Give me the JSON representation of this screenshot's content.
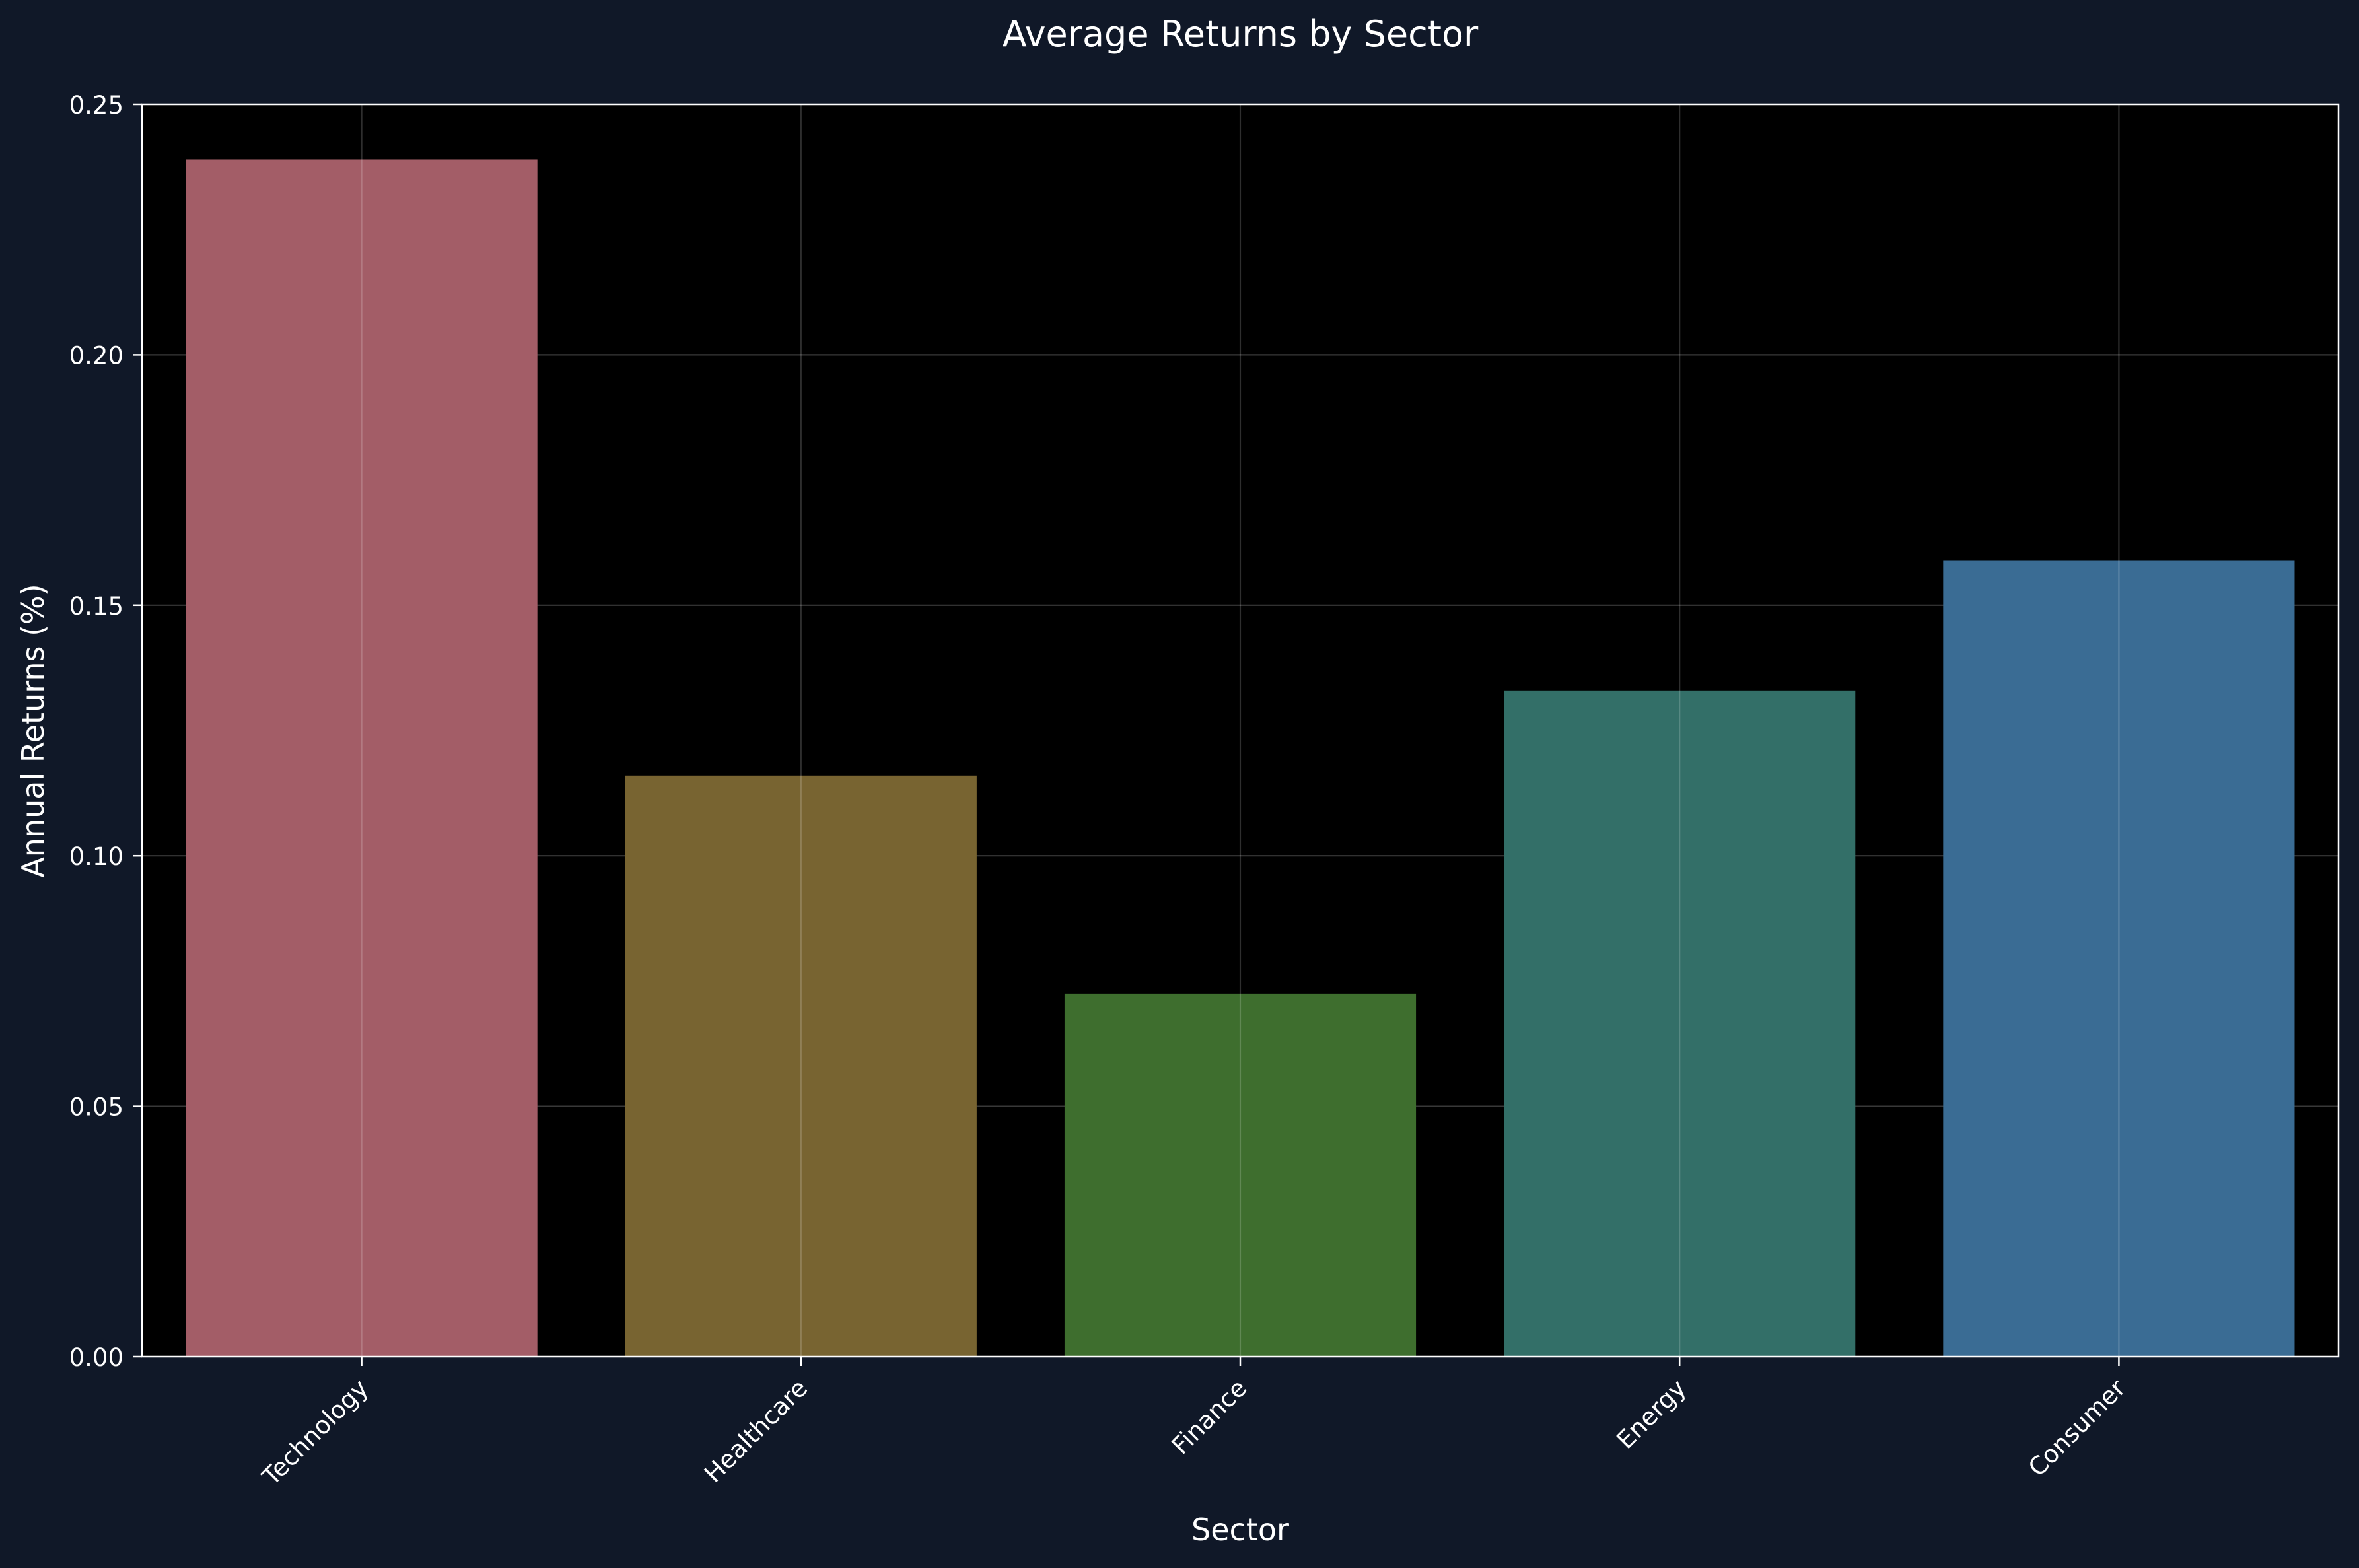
{
  "chart_data": {
    "type": "bar",
    "title": "Average Returns by Sector",
    "xlabel": "Sector",
    "ylabel": "Annual Returns (%)",
    "categories": [
      "Technology",
      "Healthcare",
      "Finance",
      "Energy",
      "Consumer"
    ],
    "values": [
      0.239,
      0.116,
      0.0725,
      0.133,
      0.159
    ],
    "ylim": [
      0,
      0.25
    ],
    "yticks": [
      0.0,
      0.05,
      0.1,
      0.15,
      0.2,
      0.25
    ],
    "ytick_labels": [
      "0.00",
      "0.05",
      "0.10",
      "0.15",
      "0.20",
      "0.25"
    ],
    "colors": [
      "#a35d67",
      "#786431",
      "#3e6e2e",
      "#336f68",
      "#3a6c94"
    ],
    "grid": true,
    "background": "#101828",
    "plot_background": "#000000"
  }
}
